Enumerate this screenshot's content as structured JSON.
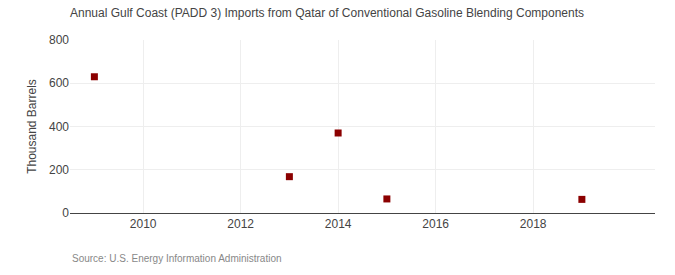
{
  "chart_data": {
    "type": "scatter",
    "title": "Annual Gulf Coast (PADD 3) Imports from Qatar of Conventional Gasoline Blending Components",
    "ylabel": "Thousand Barrels",
    "source": "Source: U.S. Energy Information Administration",
    "x": [
      2009,
      2013,
      2014,
      2015,
      2019
    ],
    "values": [
      630,
      168,
      370,
      65,
      63
    ],
    "color": "#8B0000",
    "marker": "square",
    "xlim": [
      2008.5,
      2020.5
    ],
    "xticks": [
      2010,
      2012,
      2014,
      2016,
      2018
    ],
    "ylim": [
      0,
      800
    ],
    "yticks": [
      0,
      200,
      400,
      600,
      800
    ],
    "grid": true
  }
}
